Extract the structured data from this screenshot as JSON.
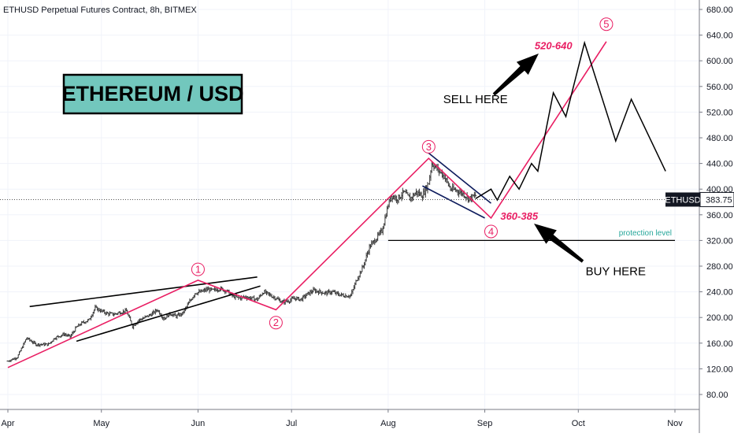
{
  "chart_data": {
    "type": "line",
    "header": "ETHUSD Perpetual Futures Contract, 8h, BITMEX",
    "title_box": "ETHEREUM / USD",
    "y_axis": {
      "ticks": [
        80,
        120,
        160,
        200,
        240,
        280,
        320,
        360,
        400,
        440,
        480,
        520,
        560,
        600,
        640,
        680
      ],
      "tick_labels": [
        "80.00",
        "120.00",
        "160.00",
        "200.00",
        "240.00",
        "280.00",
        "320.00",
        "360.00",
        "400.00",
        "440.00",
        "480.00",
        "520.00",
        "560.00",
        "600.00",
        "640.00",
        "680.00"
      ],
      "ylim": [
        45,
        692
      ]
    },
    "x_axis": {
      "ticks": [
        "2020-04-01",
        "2020-05-01",
        "2020-06-01",
        "2020-07-01",
        "2020-08-01",
        "2020-09-01",
        "2020-10-01",
        "2020-11-01"
      ],
      "tick_labels": [
        "Apr",
        "May",
        "Jun",
        "Jul",
        "Aug",
        "Sep",
        "Oct",
        "Nov"
      ],
      "xlim": [
        "2020-04-01",
        "2020-11-10"
      ]
    },
    "last_price": {
      "symbol": "ETHUSD",
      "value": 383.75,
      "label": "383.75"
    },
    "price_series": {
      "name": "",
      "points": [
        [
          "2020-04-01",
          132
        ],
        [
          "2020-04-04",
          138
        ],
        [
          "2020-04-07",
          168
        ],
        [
          "2020-04-10",
          158
        ],
        [
          "2020-04-14",
          158
        ],
        [
          "2020-04-16",
          168
        ],
        [
          "2020-04-19",
          174
        ],
        [
          "2020-04-21",
          170
        ],
        [
          "2020-04-23",
          185
        ],
        [
          "2020-04-25",
          192
        ],
        [
          "2020-04-27",
          196
        ],
        [
          "2020-04-29",
          215
        ],
        [
          "2020-05-01",
          210
        ],
        [
          "2020-05-03",
          206
        ],
        [
          "2020-05-05",
          205
        ],
        [
          "2020-05-07",
          208
        ],
        [
          "2020-05-09",
          210
        ],
        [
          "2020-05-11",
          186
        ],
        [
          "2020-05-13",
          196
        ],
        [
          "2020-05-15",
          200
        ],
        [
          "2020-05-17",
          205
        ],
        [
          "2020-05-19",
          212
        ],
        [
          "2020-05-21",
          198
        ],
        [
          "2020-05-23",
          206
        ],
        [
          "2020-05-25",
          202
        ],
        [
          "2020-05-27",
          206
        ],
        [
          "2020-05-29",
          222
        ],
        [
          "2020-05-31",
          238
        ],
        [
          "2020-06-02",
          240
        ],
        [
          "2020-06-04",
          244
        ],
        [
          "2020-06-06",
          242
        ],
        [
          "2020-06-08",
          245
        ],
        [
          "2020-06-10",
          242
        ],
        [
          "2020-06-12",
          234
        ],
        [
          "2020-06-14",
          230
        ],
        [
          "2020-06-16",
          232
        ],
        [
          "2020-06-18",
          230
        ],
        [
          "2020-06-20",
          228
        ],
        [
          "2020-06-22",
          240
        ],
        [
          "2020-06-24",
          235
        ],
        [
          "2020-06-26",
          230
        ],
        [
          "2020-06-28",
          224
        ],
        [
          "2020-06-30",
          226
        ],
        [
          "2020-07-02",
          230
        ],
        [
          "2020-07-04",
          228
        ],
        [
          "2020-07-06",
          236
        ],
        [
          "2020-07-08",
          242
        ],
        [
          "2020-07-10",
          240
        ],
        [
          "2020-07-12",
          238
        ],
        [
          "2020-07-14",
          240
        ],
        [
          "2020-07-16",
          236
        ],
        [
          "2020-07-18",
          234
        ],
        [
          "2020-07-20",
          234
        ],
        [
          "2020-07-22",
          260
        ],
        [
          "2020-07-24",
          280
        ],
        [
          "2020-07-26",
          310
        ],
        [
          "2020-07-28",
          322
        ],
        [
          "2020-07-30",
          335
        ],
        [
          "2020-08-01",
          375
        ],
        [
          "2020-08-02",
          390
        ],
        [
          "2020-08-04",
          385
        ],
        [
          "2020-08-06",
          395
        ],
        [
          "2020-08-08",
          385
        ],
        [
          "2020-08-10",
          395
        ],
        [
          "2020-08-12",
          390
        ],
        [
          "2020-08-14",
          410
        ],
        [
          "2020-08-15",
          440
        ],
        [
          "2020-08-17",
          430
        ],
        [
          "2020-08-19",
          420
        ],
        [
          "2020-08-21",
          400
        ],
        [
          "2020-08-23",
          398
        ],
        [
          "2020-08-25",
          393
        ],
        [
          "2020-08-27",
          385
        ],
        [
          "2020-08-29",
          390
        ]
      ]
    },
    "wave_path": [
      [
        "2020-04-01",
        122
      ],
      [
        "2020-06-01",
        258
      ],
      [
        "2020-06-26",
        212
      ],
      [
        "2020-08-14",
        448
      ],
      [
        "2020-09-03",
        355
      ],
      [
        "2020-10-10",
        630
      ]
    ],
    "projection_path": [
      [
        "2020-08-29",
        385
      ],
      [
        "2020-09-03",
        400
      ],
      [
        "2020-09-05",
        383
      ],
      [
        "2020-09-09",
        420
      ],
      [
        "2020-09-12",
        400
      ],
      [
        "2020-09-16",
        440
      ],
      [
        "2020-09-18",
        428
      ],
      [
        "2020-09-23",
        550
      ],
      [
        "2020-09-27",
        513
      ],
      [
        "2020-10-03",
        628
      ],
      [
        "2020-10-13",
        475
      ],
      [
        "2020-10-18",
        540
      ],
      [
        "2020-10-29",
        428
      ]
    ],
    "wave_labels": [
      {
        "text": "1",
        "x": "2020-06-01",
        "y": 275
      },
      {
        "text": "2",
        "x": "2020-06-26",
        "y": 192
      },
      {
        "text": "3",
        "x": "2020-08-14",
        "y": 466
      },
      {
        "text": "4",
        "x": "2020-09-03",
        "y": 334
      },
      {
        "text": "5",
        "x": "2020-10-10",
        "y": 657
      }
    ],
    "trendlines": [
      {
        "from": [
          "2020-04-08",
          217
        ],
        "to": [
          "2020-06-20",
          263
        ],
        "color": "#000000"
      },
      {
        "from": [
          "2020-04-23",
          163
        ],
        "to": [
          "2020-06-21",
          249
        ],
        "color": "#000000"
      },
      {
        "from": [
          "2020-08-13",
          460
        ],
        "to": [
          "2020-09-03",
          378
        ],
        "color": "#0d1b5c"
      },
      {
        "from": [
          "2020-08-12",
          405
        ],
        "to": [
          "2020-09-01",
          355
        ],
        "color": "#0d1b5c"
      },
      {
        "from": [
          "2020-08-01",
          320
        ],
        "to": [
          "2020-11-01",
          320
        ],
        "color": "#000000"
      }
    ],
    "notes": [
      {
        "text": "360-385",
        "x": "2020-09-06",
        "y": 357
      },
      {
        "text": "520-640",
        "x": "2020-09-17",
        "y": 623
      },
      {
        "text": "protection level",
        "x": "2020-10-14",
        "y": 328
      },
      {
        "text": "SELL HERE",
        "x": "2020-08-29",
        "y": 540
      },
      {
        "text": "BUY HERE",
        "x": "2020-10-13",
        "y": 272
      }
    ]
  }
}
